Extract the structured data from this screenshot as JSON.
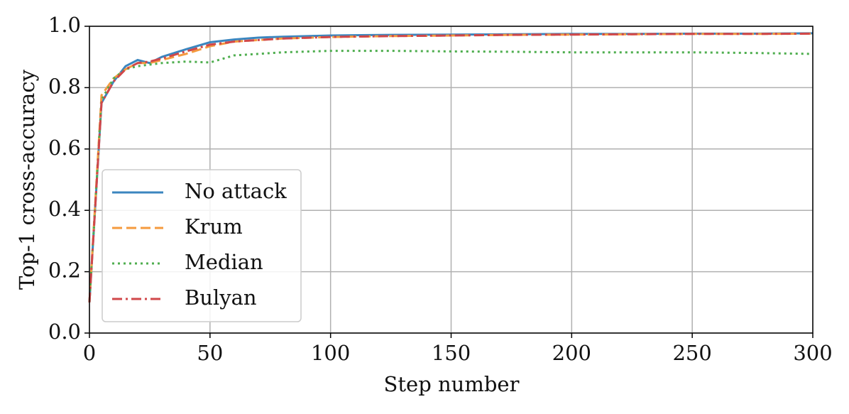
{
  "chart_data": {
    "type": "line",
    "x_label": "Step number",
    "y_label": "Top-1 cross-accuracy",
    "x": [
      0,
      5,
      10,
      15,
      20,
      25,
      30,
      40,
      50,
      60,
      70,
      80,
      100,
      125,
      150,
      175,
      200,
      225,
      250,
      275,
      300
    ],
    "series": [
      {
        "name": "No attack",
        "color": "#3b86bf",
        "linestyle": "solid",
        "values": [
          0.1,
          0.75,
          0.82,
          0.87,
          0.89,
          0.88,
          0.9,
          0.925,
          0.948,
          0.957,
          0.963,
          0.966,
          0.97,
          0.972,
          0.973,
          0.974,
          0.975,
          0.975,
          0.976,
          0.976,
          0.977
        ]
      },
      {
        "name": "Krum",
        "color": "#f59a3e",
        "linestyle": "dashed",
        "values": [
          0.1,
          0.775,
          0.83,
          0.86,
          0.88,
          0.88,
          0.89,
          0.91,
          0.935,
          0.95,
          0.955,
          0.96,
          0.965,
          0.968,
          0.97,
          0.972,
          0.973,
          0.974,
          0.975,
          0.975,
          0.976
        ]
      },
      {
        "name": "Median",
        "color": "#4fae4f",
        "linestyle": "dotted",
        "values": [
          0.1,
          0.76,
          0.83,
          0.86,
          0.87,
          0.875,
          0.88,
          0.885,
          0.882,
          0.905,
          0.91,
          0.915,
          0.92,
          0.92,
          0.918,
          0.917,
          0.915,
          0.915,
          0.915,
          0.913,
          0.91
        ]
      },
      {
        "name": "Bulyan",
        "color": "#d0474a",
        "linestyle": "dashdot",
        "values": [
          0.1,
          0.75,
          0.82,
          0.86,
          0.88,
          0.885,
          0.895,
          0.918,
          0.94,
          0.95,
          0.955,
          0.96,
          0.965,
          0.968,
          0.97,
          0.972,
          0.973,
          0.974,
          0.975,
          0.975,
          0.976
        ]
      }
    ],
    "xlim": [
      0,
      300
    ],
    "xticks": [
      0,
      50,
      100,
      150,
      200,
      250,
      300
    ],
    "ylim": [
      0,
      1
    ],
    "yticks": [
      {
        "value": 0,
        "label": "0.0"
      },
      0.2,
      0.4,
      0.6,
      0.8,
      {
        "value": 1,
        "label": "1.0"
      }
    ],
    "grid": true,
    "legend": "lower left"
  }
}
